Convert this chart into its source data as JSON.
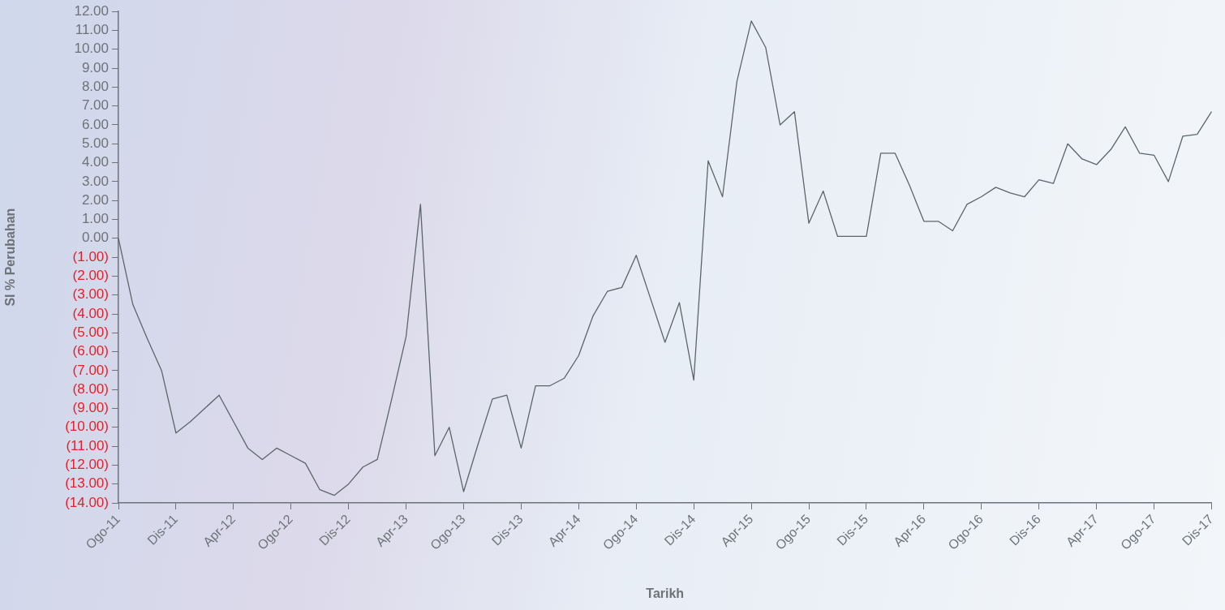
{
  "chart_data": {
    "type": "line",
    "xlabel": "Tarikh",
    "ylabel": "SI % Perubahan",
    "categories": [
      "Ogo-11",
      null,
      null,
      null,
      "Dis-11",
      null,
      null,
      null,
      "Apr-12",
      null,
      null,
      null,
      "Ogo-12",
      null,
      null,
      null,
      "Dis-12",
      null,
      null,
      null,
      "Apr-13",
      null,
      null,
      null,
      "Ogo-13",
      null,
      null,
      null,
      "Dis-13",
      null,
      null,
      null,
      "Apr-14",
      null,
      null,
      null,
      "Ogo-14",
      null,
      null,
      null,
      "Dis-14",
      null,
      null,
      null,
      "Apr-15",
      null,
      null,
      null,
      "Ogo-15",
      null,
      null,
      null,
      "Dis-15",
      null,
      null,
      null,
      "Apr-16",
      null,
      null,
      null,
      "Ogo-16",
      null,
      null,
      null,
      "Dis-16",
      null,
      null,
      null,
      "Apr-17",
      null,
      null,
      null,
      "Ogo-17",
      null,
      null,
      null,
      "Dis-17"
    ],
    "series": [
      {
        "color": "#5c6569",
        "values": [
          0,
          -3.5,
          -5.3,
          -7.0,
          -10.3,
          -9.7,
          -9.0,
          -8.3,
          -9.7,
          -11.1,
          -11.7,
          -11.1,
          -11.5,
          -11.9,
          -13.3,
          -13.6,
          -13.0,
          -12.1,
          -11.7,
          -8.5,
          -5.2,
          1.8,
          -11.5,
          -10.0,
          -13.4,
          -10.9,
          -8.5,
          -8.3,
          -11.1,
          -7.8,
          -7.8,
          -7.4,
          -6.2,
          -4.1,
          -2.8,
          -2.6,
          -0.9,
          -3.2,
          -5.5,
          -3.4,
          -7.5,
          4.1,
          2.2,
          8.3,
          11.5,
          10.1,
          6.0,
          6.7,
          0.8,
          2.5,
          0.1,
          0.1,
          0.1,
          4.5,
          4.5,
          2.8,
          0.9,
          0.9,
          0.4,
          1.8,
          2.2,
          2.7,
          2.4,
          2.2,
          3.1,
          2.9,
          5.0,
          4.2,
          3.9,
          4.7,
          5.9,
          4.5,
          4.4,
          3.0,
          5.4,
          5.5,
          6.7
        ]
      }
    ],
    "ylim": [
      -14,
      12
    ],
    "yticks": [
      {
        "value": -14,
        "label": "(14.00)"
      },
      {
        "value": -13,
        "label": "(13.00)"
      },
      {
        "value": -12,
        "label": "(12.00)"
      },
      {
        "value": -11,
        "label": "(11.00)"
      },
      {
        "value": -10,
        "label": "(10.00)"
      },
      {
        "value": -9,
        "label": "(9.00)"
      },
      {
        "value": -8,
        "label": "(8.00)"
      },
      {
        "value": -7,
        "label": "(7.00)"
      },
      {
        "value": -6,
        "label": "(6.00)"
      },
      {
        "value": -5,
        "label": "(5.00)"
      },
      {
        "value": -4,
        "label": "(4.00)"
      },
      {
        "value": -3,
        "label": "(3.00)"
      },
      {
        "value": -2,
        "label": "(2.00)"
      },
      {
        "value": -1,
        "label": "(1.00)"
      },
      {
        "value": 0,
        "label": "0.00"
      },
      {
        "value": 1,
        "label": "1.00"
      },
      {
        "value": 2,
        "label": "2.00"
      },
      {
        "value": 3,
        "label": "3.00"
      },
      {
        "value": 4,
        "label": "4.00"
      },
      {
        "value": 5,
        "label": "5.00"
      },
      {
        "value": 6,
        "label": "6.00"
      },
      {
        "value": 7,
        "label": "7.00"
      },
      {
        "value": 8,
        "label": "8.00"
      },
      {
        "value": 9,
        "label": "9.00"
      },
      {
        "value": 10,
        "label": "10.00"
      },
      {
        "value": 11,
        "label": "11.00"
      },
      {
        "value": 12,
        "label": "12.00"
      }
    ],
    "marker": "none"
  }
}
